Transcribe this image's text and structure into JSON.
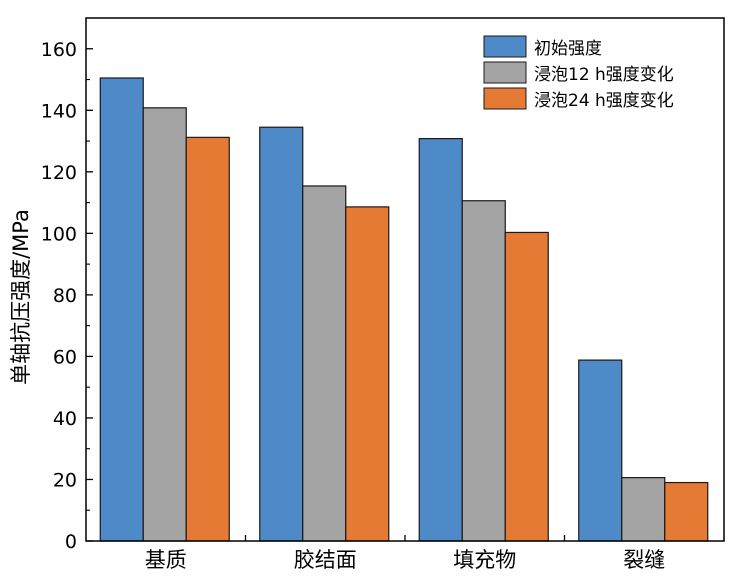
{
  "chart_data": {
    "type": "bar",
    "categories": [
      "基质",
      "胶结面",
      "填充物",
      "裂缝"
    ],
    "series": [
      {
        "name": "初始强度",
        "color": "#4e89c8",
        "values": [
          150.5,
          134.5,
          130.8,
          58.8
        ]
      },
      {
        "name": "浸泡12 h强度变化",
        "color": "#a4a4a4",
        "values": [
          140.8,
          115.4,
          110.6,
          20.6
        ]
      },
      {
        "name": "浸泡24 h强度变化",
        "color": "#e47a33",
        "values": [
          131.2,
          108.6,
          100.3,
          19.0
        ]
      }
    ],
    "ylabel": "单轴抗压强度/MPa",
    "ylim": [
      0,
      170
    ],
    "yticks": [
      0,
      20,
      40,
      60,
      80,
      100,
      120,
      140,
      160
    ],
    "grid": false,
    "legend_position": "top-right"
  }
}
